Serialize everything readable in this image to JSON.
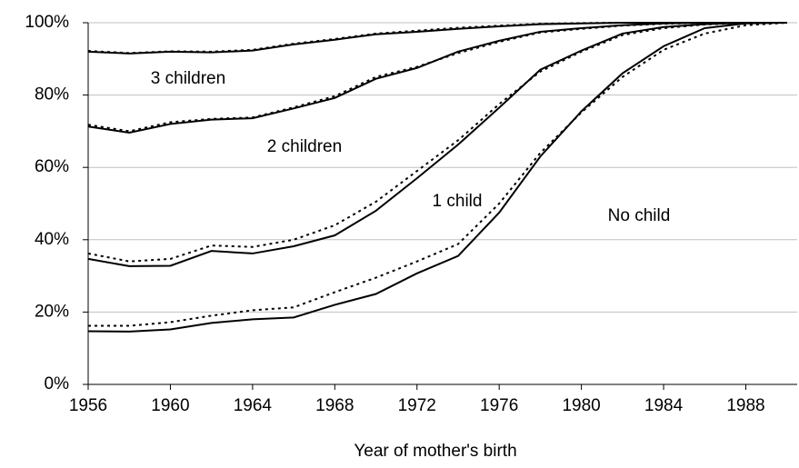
{
  "chart_data": {
    "type": "line",
    "x_label": "Year of mother's birth",
    "x": [
      1956,
      1958,
      1960,
      1962,
      1964,
      1966,
      1968,
      1970,
      1972,
      1974,
      1976,
      1978,
      1980,
      1982,
      1984,
      1986,
      1988,
      1990
    ],
    "series": [
      {
        "name": "3 children",
        "color": "#000000",
        "style": "solid",
        "values": [
          92,
          91.5,
          92,
          91.8,
          92.3,
          94,
          95.3,
          96.8,
          97.5,
          98.3,
          99,
          99.6,
          99.8,
          100,
          100,
          100,
          100,
          100
        ]
      },
      {
        "color": "#000000",
        "style": "dotted",
        "values": [
          92.2,
          91.6,
          92.1,
          92,
          92.5,
          94.2,
          95.5,
          97,
          97.8,
          98.6,
          99.2,
          99.7,
          99.9,
          100,
          100,
          100,
          100,
          100
        ]
      },
      {
        "name": "2 children",
        "color": "#000000",
        "style": "solid",
        "values": [
          71.3,
          69.6,
          72,
          73.2,
          73.6,
          76.3,
          79.2,
          84.5,
          87.5,
          92,
          95,
          97.5,
          98.5,
          99.3,
          99.8,
          100,
          100,
          100
        ]
      },
      {
        "color": "#000000",
        "style": "dotted",
        "values": [
          71.8,
          70,
          72.5,
          73.4,
          73.8,
          76.6,
          79.7,
          85,
          87.8,
          91.6,
          94.7,
          97.3,
          98.3,
          99.2,
          99.7,
          100,
          100,
          100
        ]
      },
      {
        "name": "1 child",
        "color": "#000000",
        "style": "solid",
        "values": [
          34.7,
          32.7,
          32.8,
          36.9,
          36.2,
          38.2,
          41.2,
          48,
          57,
          66.3,
          76.5,
          87,
          92.3,
          97,
          98.8,
          99.6,
          100,
          100
        ]
      },
      {
        "color": "#000000",
        "style": "dotted",
        "values": [
          36.2,
          34,
          34.7,
          38.4,
          38,
          40,
          44,
          50.5,
          59,
          67.5,
          77.5,
          86.5,
          92,
          96.6,
          98.5,
          99.5,
          100,
          100
        ]
      },
      {
        "name": "No child",
        "color": "#000000",
        "style": "solid",
        "values": [
          14.7,
          14.6,
          15.2,
          17,
          18,
          18.5,
          22,
          25,
          30.7,
          35.5,
          47.5,
          63,
          75.5,
          86,
          93.5,
          98.5,
          99.8,
          100
        ]
      },
      {
        "color": "#000000",
        "style": "dotted",
        "values": [
          16.2,
          16.2,
          17.2,
          19,
          20.5,
          21.3,
          25.5,
          29.5,
          34,
          38.8,
          50,
          64,
          75.2,
          85,
          92.5,
          97,
          99.3,
          100
        ]
      }
    ],
    "xlim": [
      1956,
      1990.5
    ],
    "xticks": [
      1956,
      1960,
      1964,
      1968,
      1972,
      1976,
      1980,
      1984,
      1988
    ],
    "ylim": [
      0,
      100
    ],
    "yticks": [
      {
        "value": 0,
        "label": "0%"
      },
      {
        "value": 20,
        "label": "20%"
      },
      {
        "value": 40,
        "label": "40%"
      },
      {
        "value": 60,
        "label": "60%"
      },
      {
        "value": 80,
        "label": "80%"
      },
      {
        "value": 100,
        "label": "100%"
      }
    ],
    "grid": true
  }
}
